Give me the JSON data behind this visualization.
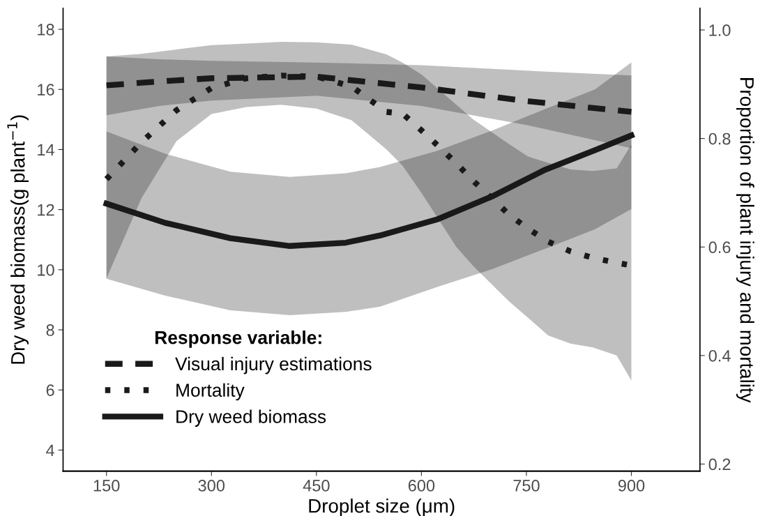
{
  "chart_data": {
    "type": "line",
    "xlabel": "Droplet size (μm)",
    "ylabel": "Dry weed biomass(g plant$^{−1}$)",
    "y2label": "Proportion of plant injury and mortality",
    "legend_title": "Response variable:",
    "legend": "bottom left",
    "grid": false,
    "xlim": [
      88,
      998
    ],
    "xticks": [
      150,
      300,
      450,
      600,
      750,
      900
    ],
    "ylim": [
      3.3,
      18.7
    ],
    "yticks": [
      4,
      6,
      8,
      10,
      12,
      14,
      16,
      18
    ],
    "y2lim": [
      0.187,
      1.04
    ],
    "y2ticks": [
      {
        "value": 0.2,
        "label": "0.2"
      },
      {
        "value": 0.4,
        "label": "0.4"
      },
      {
        "value": 0.6,
        "label": "0.6"
      },
      {
        "value": 0.8,
        "label": "0.8"
      },
      {
        "value": 1.0,
        "label": "1.0"
      }
    ],
    "series": [
      {
        "name": "Visual injury estimations",
        "color": "#1a1a1a",
        "axis": "y2",
        "line_style": "dashed",
        "x": [
          150,
          225,
          300,
          450,
          600,
          750,
          900
        ],
        "values": [
          0.898,
          0.905,
          0.911,
          0.914,
          0.894,
          0.869,
          0.849
        ],
        "upper": [
          0.951,
          0.946,
          0.943,
          0.94,
          0.935,
          0.925,
          0.916
        ],
        "lower": [
          0.843,
          0.86,
          0.87,
          0.879,
          0.86,
          0.825,
          0.782
        ]
      },
      {
        "name": "Mortality",
        "color": "#1a1a1a",
        "axis": "y2",
        "line_style": "dotted",
        "x": [
          150,
          200,
          250,
          300,
          350,
          400,
          450,
          500,
          550,
          573,
          600,
          625,
          650,
          674,
          725,
          752,
          781,
          813,
          845,
          879,
          900
        ],
        "values": [
          0.725,
          0.793,
          0.852,
          0.893,
          0.911,
          0.916,
          0.914,
          0.896,
          0.849,
          0.846,
          0.815,
          0.785,
          0.754,
          0.722,
          0.66,
          0.634,
          0.61,
          0.592,
          0.58,
          0.571,
          0.566
        ],
        "upper": [
          0.951,
          0.956,
          0.964,
          0.972,
          0.975,
          0.978,
          0.977,
          0.973,
          0.955,
          0.94,
          0.918,
          0.89,
          0.862,
          0.835,
          0.79,
          0.767,
          0.755,
          0.743,
          0.74,
          0.745,
          0.789
        ],
        "lower": [
          0.542,
          0.69,
          0.795,
          0.845,
          0.858,
          0.862,
          0.855,
          0.834,
          0.78,
          0.75,
          0.7,
          0.65,
          0.6,
          0.565,
          0.5,
          0.47,
          0.437,
          0.422,
          0.415,
          0.4,
          0.354
        ]
      },
      {
        "name": "Dry weed biomass",
        "color": "#1a1a1a",
        "axis": "y",
        "line_style": "solid",
        "x": [
          150,
          234,
          327,
          412,
          492,
          541,
          622,
          701,
          777,
          848,
          900
        ],
        "values": [
          12.2,
          11.56,
          11.05,
          10.79,
          10.9,
          11.14,
          11.67,
          12.44,
          13.33,
          13.98,
          14.47
        ],
        "upper": [
          14.6,
          13.86,
          13.26,
          13.09,
          13.21,
          13.42,
          13.95,
          14.63,
          15.35,
          16.0,
          16.9
        ],
        "lower": [
          9.7,
          9.14,
          8.65,
          8.49,
          8.6,
          8.77,
          9.42,
          10.02,
          10.7,
          11.35,
          12.02
        ]
      }
    ]
  }
}
